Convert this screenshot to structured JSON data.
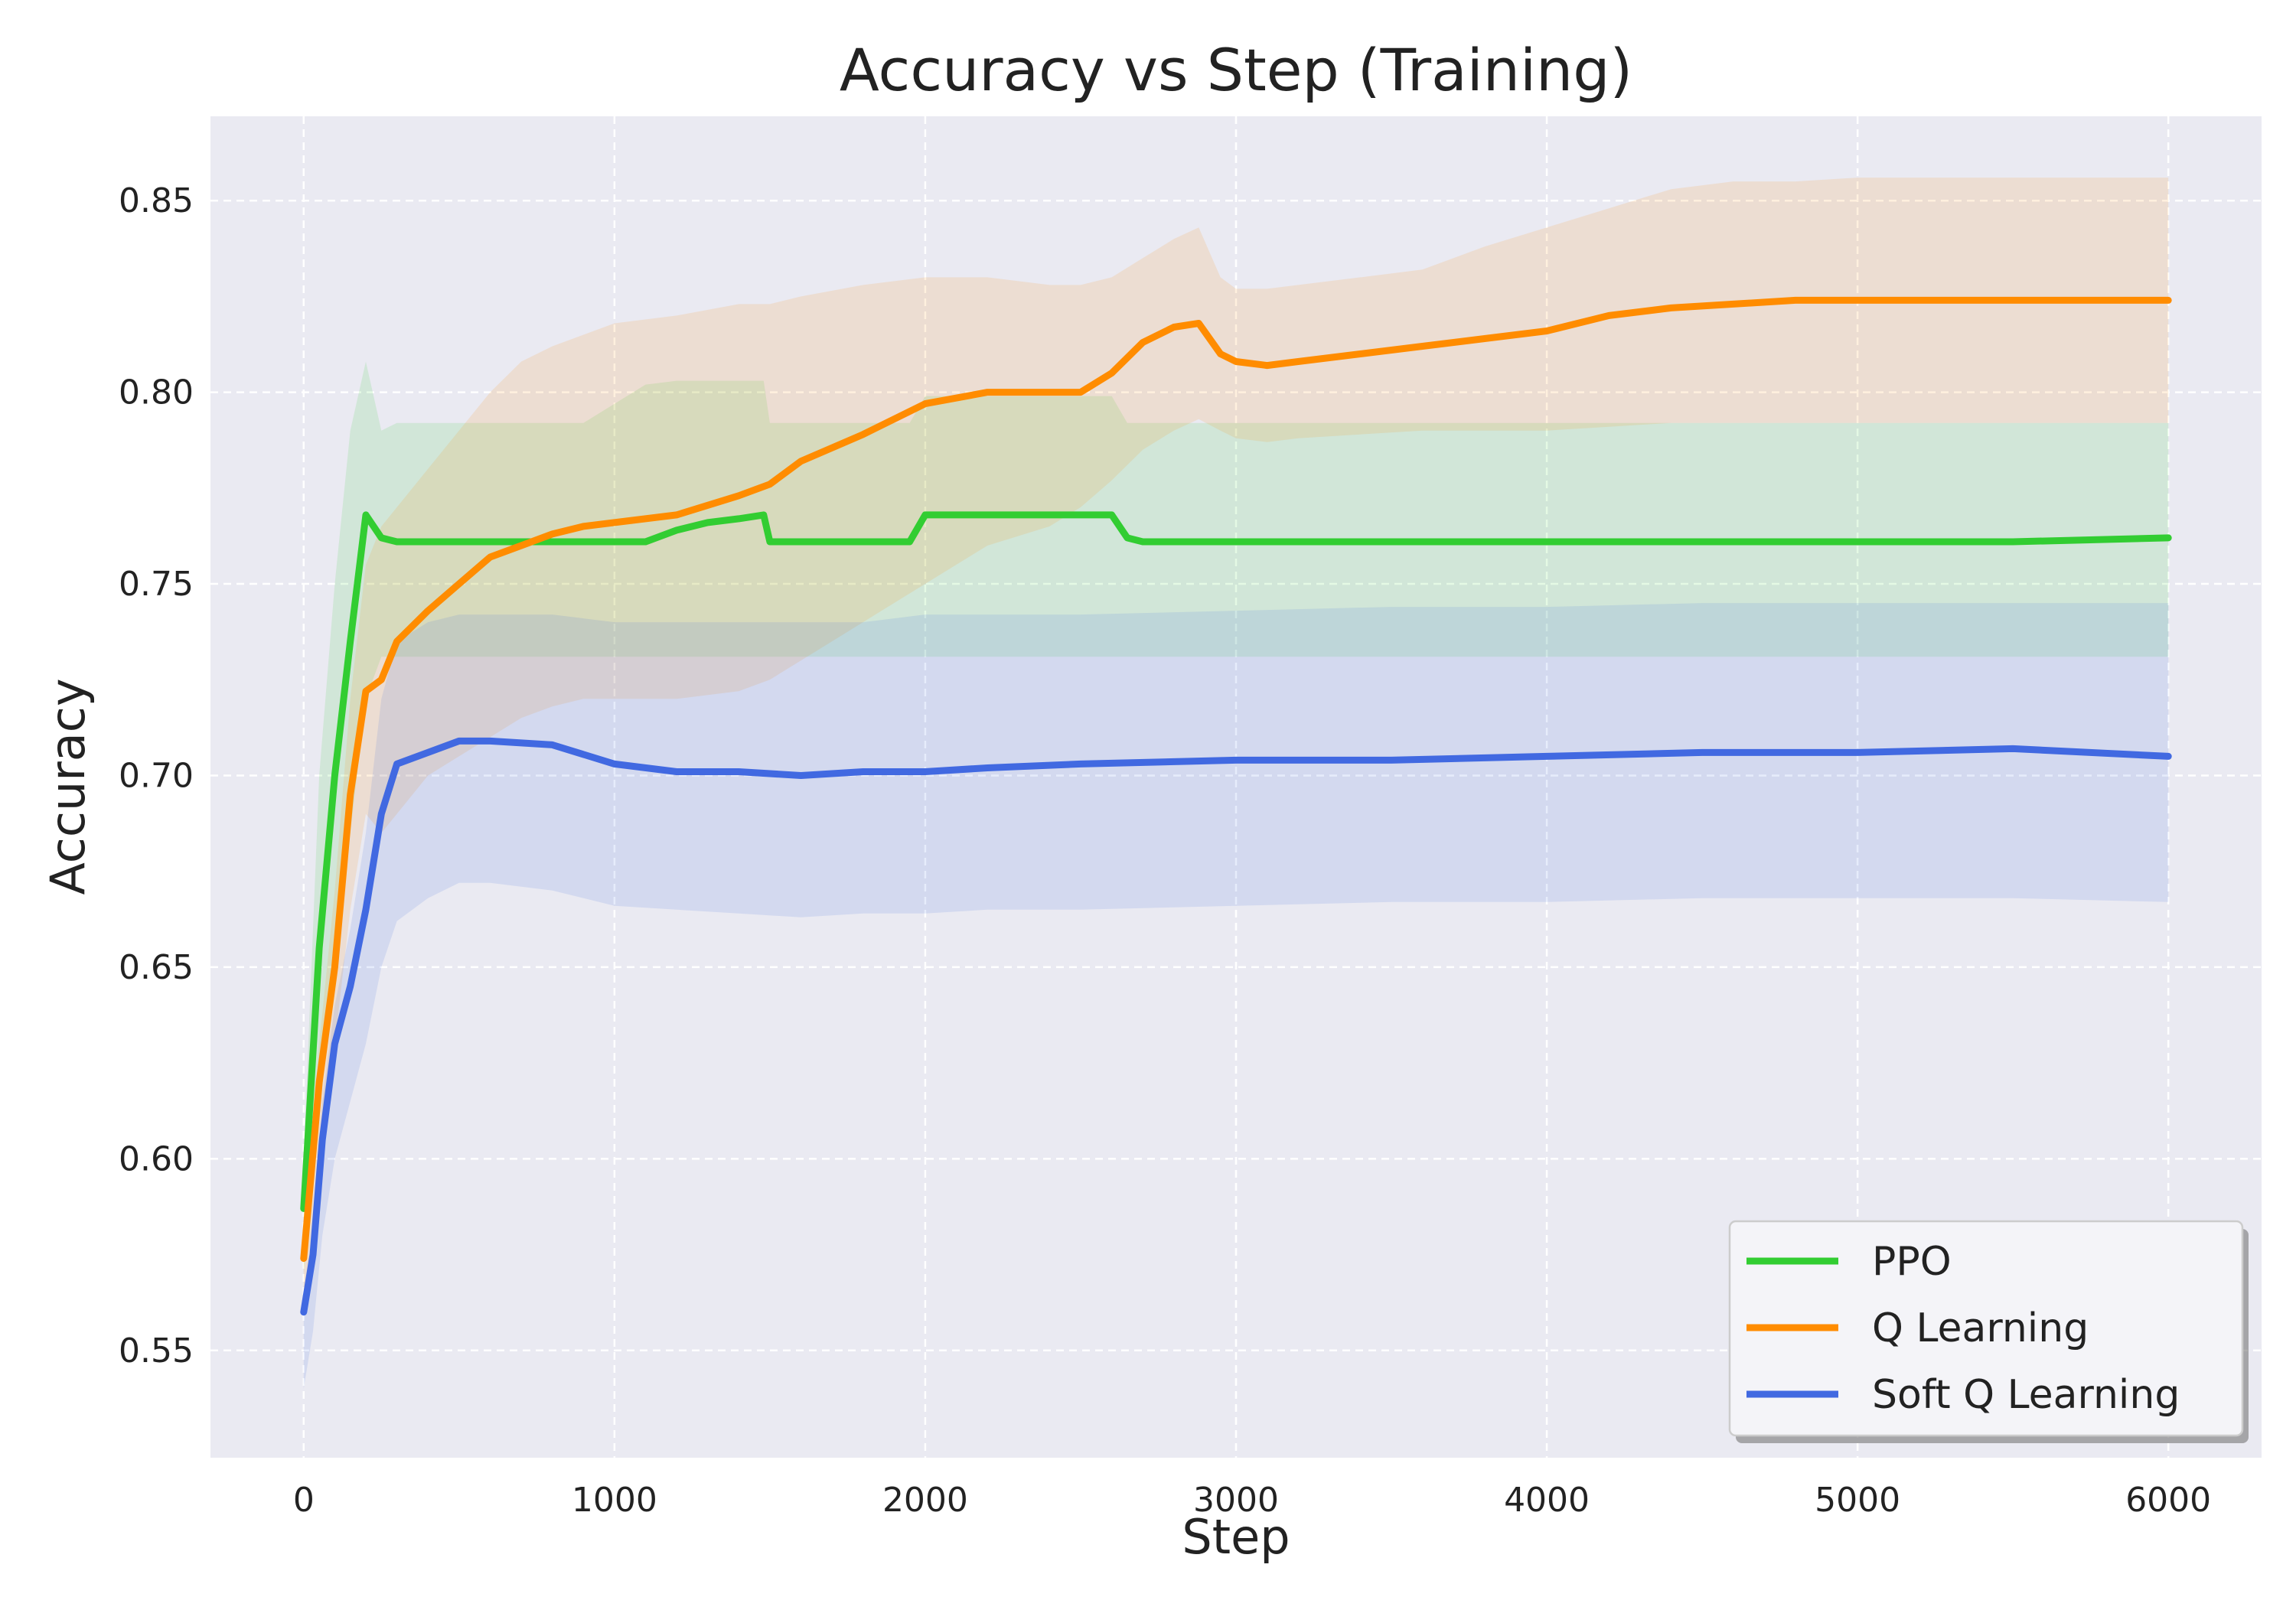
{
  "chart_data": {
    "type": "line",
    "title": "Accuracy vs Step (Training)",
    "xlabel": "Step",
    "ylabel": "Accuracy",
    "xlim": [
      -300,
      6300
    ],
    "ylim": [
      0.522,
      0.872
    ],
    "x_ticks": [
      0,
      1000,
      2000,
      3000,
      4000,
      5000,
      6000
    ],
    "x_tick_labels": [
      "0",
      "1000",
      "2000",
      "3000",
      "4000",
      "5000",
      "6000"
    ],
    "y_ticks": [
      0.55,
      0.6,
      0.65,
      0.7,
      0.75,
      0.8,
      0.85
    ],
    "y_tick_labels": [
      "0.55",
      "0.60",
      "0.65",
      "0.70",
      "0.75",
      "0.80",
      "0.85"
    ],
    "grid": true,
    "grid_style": "dashed",
    "background": "#eaeaf2",
    "legend_position": "lower-right",
    "series": [
      {
        "name": "PPO",
        "color": "#32cd32",
        "x": [
          0,
          50,
          100,
          150,
          200,
          250,
          300,
          400,
          500,
          700,
          900,
          1100,
          1200,
          1300,
          1400,
          1480,
          1500,
          1600,
          1800,
          1950,
          2000,
          2100,
          2300,
          2500,
          2600,
          2650,
          2700,
          3000,
          3500,
          4000,
          4500,
          5000,
          5500,
          6000
        ],
        "values": [
          0.587,
          0.655,
          0.7,
          0.735,
          0.768,
          0.762,
          0.761,
          0.761,
          0.761,
          0.761,
          0.761,
          0.761,
          0.764,
          0.766,
          0.767,
          0.768,
          0.761,
          0.761,
          0.761,
          0.761,
          0.768,
          0.768,
          0.768,
          0.768,
          0.768,
          0.762,
          0.761,
          0.761,
          0.761,
          0.761,
          0.761,
          0.761,
          0.761,
          0.762
        ],
        "upper": [
          0.6,
          0.7,
          0.75,
          0.79,
          0.808,
          0.79,
          0.792,
          0.792,
          0.792,
          0.792,
          0.792,
          0.802,
          0.803,
          0.803,
          0.803,
          0.803,
          0.792,
          0.792,
          0.792,
          0.792,
          0.799,
          0.799,
          0.799,
          0.799,
          0.799,
          0.792,
          0.792,
          0.792,
          0.792,
          0.792,
          0.792,
          0.792,
          0.792,
          0.792
        ],
        "lower": [
          0.57,
          0.61,
          0.655,
          0.685,
          0.72,
          0.731,
          0.731,
          0.731,
          0.731,
          0.731,
          0.731,
          0.731,
          0.731,
          0.731,
          0.731,
          0.731,
          0.731,
          0.731,
          0.731,
          0.731,
          0.731,
          0.731,
          0.731,
          0.731,
          0.731,
          0.731,
          0.731,
          0.731,
          0.731,
          0.731,
          0.731,
          0.731,
          0.731,
          0.731
        ]
      },
      {
        "name": "Q Learning",
        "color": "#ff8c00",
        "x": [
          0,
          50,
          100,
          150,
          200,
          250,
          300,
          400,
          500,
          600,
          700,
          800,
          900,
          1000,
          1200,
          1400,
          1500,
          1600,
          1800,
          2000,
          2200,
          2400,
          2500,
          2600,
          2700,
          2800,
          2880,
          2950,
          3000,
          3100,
          3200,
          3400,
          3600,
          3800,
          4000,
          4200,
          4400,
          4600,
          4800,
          5000,
          5500,
          6000
        ],
        "values": [
          0.574,
          0.62,
          0.65,
          0.695,
          0.722,
          0.725,
          0.735,
          0.743,
          0.75,
          0.757,
          0.76,
          0.763,
          0.765,
          0.766,
          0.768,
          0.773,
          0.776,
          0.782,
          0.789,
          0.797,
          0.8,
          0.8,
          0.8,
          0.805,
          0.813,
          0.817,
          0.818,
          0.81,
          0.808,
          0.807,
          0.808,
          0.81,
          0.812,
          0.814,
          0.816,
          0.82,
          0.822,
          0.823,
          0.824,
          0.824,
          0.824,
          0.824
        ],
        "upper": [
          0.58,
          0.63,
          0.67,
          0.72,
          0.755,
          0.765,
          0.77,
          0.78,
          0.79,
          0.8,
          0.808,
          0.812,
          0.815,
          0.818,
          0.82,
          0.823,
          0.823,
          0.825,
          0.828,
          0.83,
          0.83,
          0.828,
          0.828,
          0.83,
          0.835,
          0.84,
          0.843,
          0.83,
          0.827,
          0.827,
          0.828,
          0.83,
          0.832,
          0.838,
          0.843,
          0.848,
          0.853,
          0.855,
          0.855,
          0.856,
          0.856,
          0.856
        ],
        "lower": [
          0.56,
          0.6,
          0.63,
          0.665,
          0.69,
          0.685,
          0.69,
          0.7,
          0.705,
          0.71,
          0.715,
          0.718,
          0.72,
          0.72,
          0.72,
          0.722,
          0.725,
          0.73,
          0.74,
          0.75,
          0.76,
          0.765,
          0.77,
          0.777,
          0.785,
          0.79,
          0.793,
          0.79,
          0.788,
          0.787,
          0.788,
          0.789,
          0.79,
          0.79,
          0.79,
          0.791,
          0.792,
          0.792,
          0.792,
          0.792,
          0.792,
          0.792
        ]
      },
      {
        "name": "Soft Q Learning",
        "color": "#4169e1",
        "x": [
          0,
          30,
          60,
          100,
          150,
          200,
          250,
          300,
          400,
          500,
          600,
          800,
          1000,
          1200,
          1400,
          1600,
          1800,
          2000,
          2200,
          2500,
          3000,
          3500,
          4000,
          4500,
          5000,
          5500,
          6000
        ],
        "values": [
          0.56,
          0.575,
          0.605,
          0.63,
          0.645,
          0.665,
          0.69,
          0.703,
          0.706,
          0.709,
          0.709,
          0.708,
          0.703,
          0.701,
          0.701,
          0.7,
          0.701,
          0.701,
          0.702,
          0.703,
          0.704,
          0.704,
          0.705,
          0.706,
          0.706,
          0.707,
          0.705
        ],
        "upper": [
          0.56,
          0.58,
          0.615,
          0.64,
          0.66,
          0.685,
          0.72,
          0.735,
          0.74,
          0.742,
          0.742,
          0.742,
          0.74,
          0.74,
          0.74,
          0.74,
          0.74,
          0.742,
          0.742,
          0.742,
          0.743,
          0.744,
          0.744,
          0.745,
          0.745,
          0.745,
          0.745
        ],
        "lower": [
          0.54,
          0.555,
          0.58,
          0.6,
          0.615,
          0.63,
          0.65,
          0.662,
          0.668,
          0.672,
          0.672,
          0.67,
          0.666,
          0.665,
          0.664,
          0.663,
          0.664,
          0.664,
          0.665,
          0.665,
          0.666,
          0.667,
          0.667,
          0.668,
          0.668,
          0.668,
          0.667
        ]
      }
    ]
  }
}
